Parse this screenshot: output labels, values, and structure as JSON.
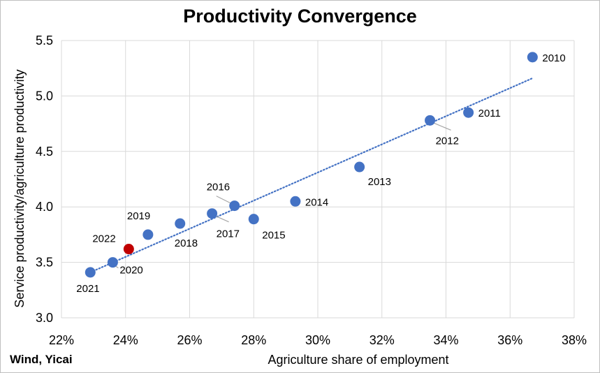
{
  "chart_data": {
    "type": "scatter",
    "title": "Productivity Convergence",
    "xlabel": "Agriculture share of employment",
    "ylabel": "Service productivity/agriculture productivity",
    "source": "Wind, Yicai",
    "xlim": [
      0.22,
      0.38
    ],
    "ylim": [
      3.0,
      5.5
    ],
    "x_ticks": [
      "22%",
      "24%",
      "26%",
      "28%",
      "30%",
      "32%",
      "34%",
      "36%",
      "38%"
    ],
    "y_ticks": [
      "3.0",
      "3.5",
      "4.0",
      "4.5",
      "5.0",
      "5.5"
    ],
    "grid": "horizontal-and-vertical",
    "trendline": {
      "style": "dotted",
      "from": [
        0.229,
        3.41
      ],
      "to": [
        0.367,
        5.16
      ]
    },
    "colors": {
      "point": "#4472C4",
      "highlight": "#C00000",
      "trend": "#4472C4",
      "grid": "#d9d9d9"
    },
    "points": [
      {
        "label": "2010",
        "x": 0.367,
        "y": 5.35,
        "highlight": false,
        "label_pos": "right"
      },
      {
        "label": "2011",
        "x": 0.347,
        "y": 4.85,
        "highlight": false,
        "label_pos": "right"
      },
      {
        "label": "2012",
        "x": 0.335,
        "y": 4.78,
        "highlight": false,
        "label_pos": "below-right-leader"
      },
      {
        "label": "2013",
        "x": 0.313,
        "y": 4.36,
        "highlight": false,
        "label_pos": "below-right"
      },
      {
        "label": "2014",
        "x": 0.293,
        "y": 4.05,
        "highlight": false,
        "label_pos": "right"
      },
      {
        "label": "2015",
        "x": 0.28,
        "y": 3.89,
        "highlight": false,
        "label_pos": "below-right"
      },
      {
        "label": "2016",
        "x": 0.274,
        "y": 4.01,
        "highlight": false,
        "label_pos": "above-left-leader"
      },
      {
        "label": "2017",
        "x": 0.267,
        "y": 3.94,
        "highlight": false,
        "label_pos": "below-right-leader"
      },
      {
        "label": "2018",
        "x": 0.257,
        "y": 3.85,
        "highlight": false,
        "label_pos": "below-left"
      },
      {
        "label": "2019",
        "x": 0.247,
        "y": 3.75,
        "highlight": false,
        "label_pos": "above-left"
      },
      {
        "label": "2020",
        "x": 0.236,
        "y": 3.5,
        "highlight": false,
        "label_pos": "below-right-leader"
      },
      {
        "label": "2021",
        "x": 0.229,
        "y": 3.41,
        "highlight": false,
        "label_pos": "below-right"
      },
      {
        "label": "2022",
        "x": 0.241,
        "y": 3.62,
        "highlight": true,
        "label_pos": "above-left"
      }
    ]
  }
}
